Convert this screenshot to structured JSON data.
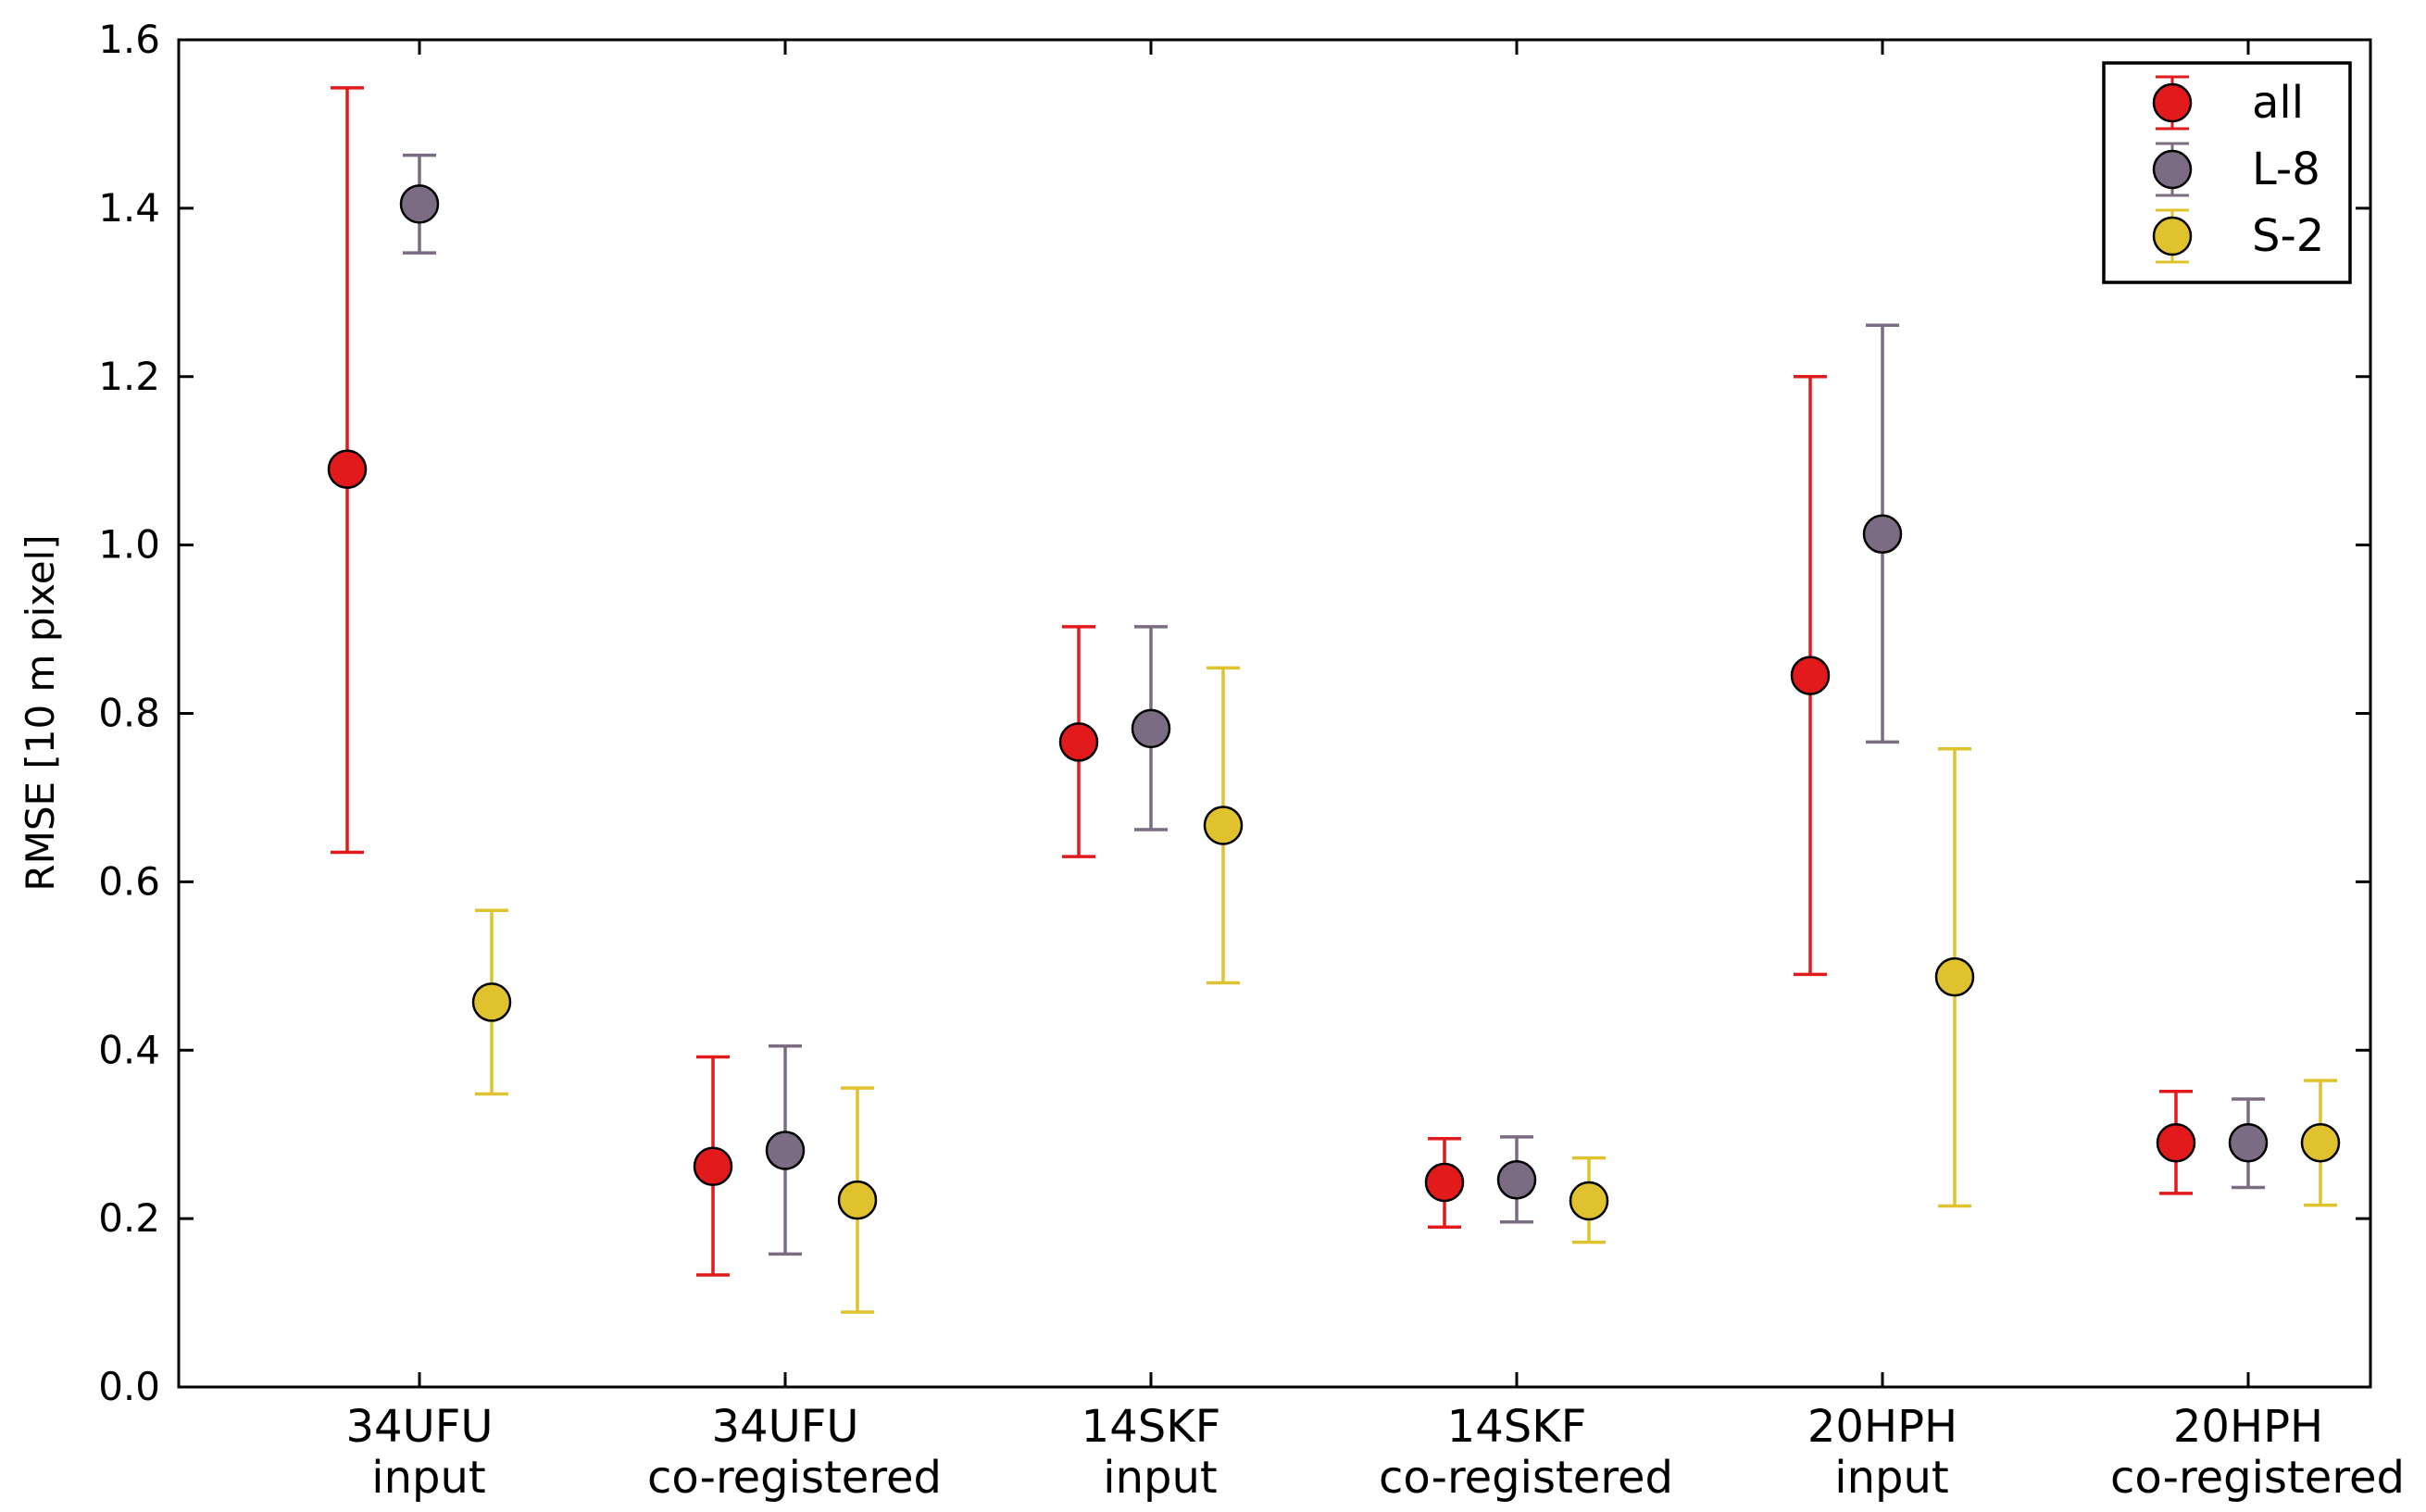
{
  "chart_data": {
    "type": "scatter",
    "title": "",
    "xlabel": "",
    "ylabel": "RMSE [10 m pixel]",
    "ylim": [
      0.0,
      1.6
    ],
    "yticks": [
      "0.0",
      "0.2",
      "0.4",
      "0.6",
      "0.8",
      "1.0",
      "1.2",
      "1.4",
      "1.6"
    ],
    "categories": [
      {
        "line1": "34UFU",
        "line2": "input"
      },
      {
        "line1": "34UFU",
        "line2": "co-registered"
      },
      {
        "line1": "14SKF",
        "line2": "input"
      },
      {
        "line1": "14SKF",
        "line2": "co-registered"
      },
      {
        "line1": "20HPH",
        "line2": "input"
      },
      {
        "line1": "20HPH",
        "line2": "co-registered"
      }
    ],
    "series": [
      {
        "name": "all",
        "color": "#e31a1c",
        "values": [
          1.09,
          0.262,
          0.766,
          0.243,
          0.845,
          0.29
        ],
        "lower": [
          0.635,
          0.133,
          0.63,
          0.19,
          0.49,
          0.23
        ],
        "upper": [
          1.543,
          0.392,
          0.903,
          0.295,
          1.2,
          0.351
        ]
      },
      {
        "name": "L-8",
        "color": "#7b6c83",
        "values": [
          1.405,
          0.281,
          0.782,
          0.246,
          1.013,
          0.29
        ],
        "lower": [
          1.347,
          0.158,
          0.662,
          0.196,
          0.766,
          0.237
        ],
        "upper": [
          1.463,
          0.405,
          0.903,
          0.297,
          1.261,
          0.342
        ]
      },
      {
        "name": "S-2",
        "color": "#e0c22e",
        "values": [
          0.457,
          0.222,
          0.667,
          0.221,
          0.487,
          0.29
        ],
        "lower": [
          0.348,
          0.089,
          0.48,
          0.172,
          0.215,
          0.216
        ],
        "upper": [
          0.566,
          0.355,
          0.854,
          0.272,
          0.758,
          0.364
        ]
      }
    ],
    "legend": {
      "placement": "top-right"
    },
    "grid": false
  }
}
